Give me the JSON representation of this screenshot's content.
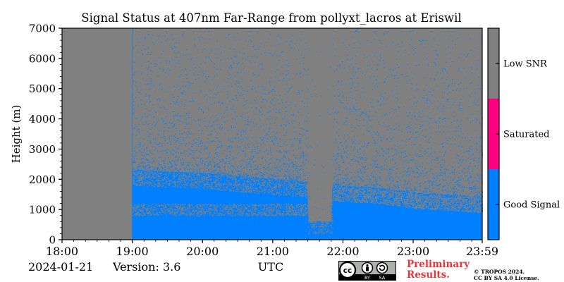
{
  "chart_data": {
    "type": "heatmap",
    "title": "Signal Status at 407nm Far-Range from pollyxt_lacros at Eriswil",
    "xlabel": "UTC",
    "ylabel": "Height (m)",
    "x_ticks": [
      "18:00",
      "19:00",
      "20:00",
      "21:00",
      "22:00",
      "23:00",
      "23:59"
    ],
    "x_tick_hours": [
      18,
      19,
      20,
      21,
      22,
      23,
      23.983
    ],
    "x_range_hours": [
      18,
      23.983
    ],
    "y_ticks": [
      "0",
      "1000",
      "2000",
      "3000",
      "4000",
      "5000",
      "6000",
      "7000"
    ],
    "y_range": [
      0,
      7000
    ],
    "colorbar": {
      "categories": [
        "Good Signal",
        "Saturated",
        "Low SNR"
      ],
      "colors": [
        "#0080ff",
        "#ff0080",
        "#808080"
      ]
    },
    "data_start_hour": 19.0,
    "good_signal_top_profile": [
      {
        "hour": 19.0,
        "height": 2300
      },
      {
        "hour": 20.0,
        "height": 2200
      },
      {
        "hour": 21.0,
        "height": 2000
      },
      {
        "hour": 21.5,
        "height": 1900
      },
      {
        "hour": 21.85,
        "height": 1800
      },
      {
        "hour": 22.5,
        "height": 1700
      },
      {
        "hour": 23.0,
        "height": 1550
      },
      {
        "hour": 23.98,
        "height": 1400
      }
    ],
    "gap_interval_hours": [
      21.5,
      21.85
    ]
  },
  "footer": {
    "date": "2024-01-21",
    "version": "Version: 3.6",
    "preliminary_line1": "Preliminary",
    "preliminary_line2": "Results.",
    "copyright_line1": "© TROPOS 2024.",
    "copyright_line2": "CC BY SA 4.0 License.",
    "license_logo": "cc-by-sa-logo",
    "license_logo_labels": [
      "cc",
      "BY",
      "SA"
    ]
  }
}
